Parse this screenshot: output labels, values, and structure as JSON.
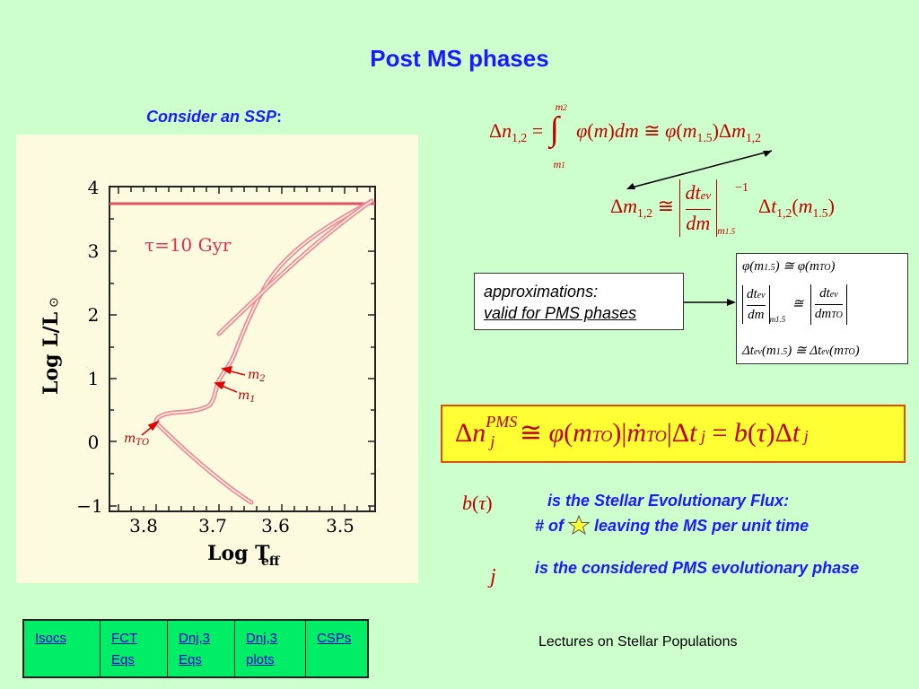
{
  "slide": {
    "title": "Post MS phases",
    "consider": "Consider an SSP",
    "consider_colon": ":",
    "approx_line1": "approximations:",
    "approx_line2": "valid for PMS phases",
    "flux_line1": "is the Stellar Evolutionary Flux:",
    "flux_line2_a": "# of",
    "flux_line2_b": "leaving the MS per unit time",
    "pms_text": "is the considered PMS evolutionary phase",
    "footer": "Lectures on Stellar Populations"
  },
  "plot": {
    "ylabel": "Log L/L",
    "xlabel": "Log T",
    "xlabel_sub": "eff",
    "tau_label": "τ=10 Gyr",
    "y_ticks": [
      "4",
      "3",
      "2",
      "1",
      "0",
      "−1"
    ],
    "x_ticks": [
      "3.8",
      "3.7",
      "3.6",
      "3.5"
    ],
    "label_m2": "m",
    "label_m2_sub": "2",
    "label_m1": "m",
    "label_m1_sub": "1",
    "label_mto": "m",
    "label_mto_sub": "TO"
  },
  "nav": {
    "links": [
      {
        "label": "Isocs"
      },
      {
        "label": "FCT Eqs"
      },
      {
        "label": "Dnj,3 Eqs"
      },
      {
        "label": "Dnj,3 plots"
      },
      {
        "label": "CSPs"
      }
    ]
  },
  "colors": {
    "background": "#ccffcc",
    "title_blue": "#1a1aff",
    "equation_red": "#c00000",
    "highlight_yellow": "#ffff33",
    "nav_green": "#00ee66"
  }
}
